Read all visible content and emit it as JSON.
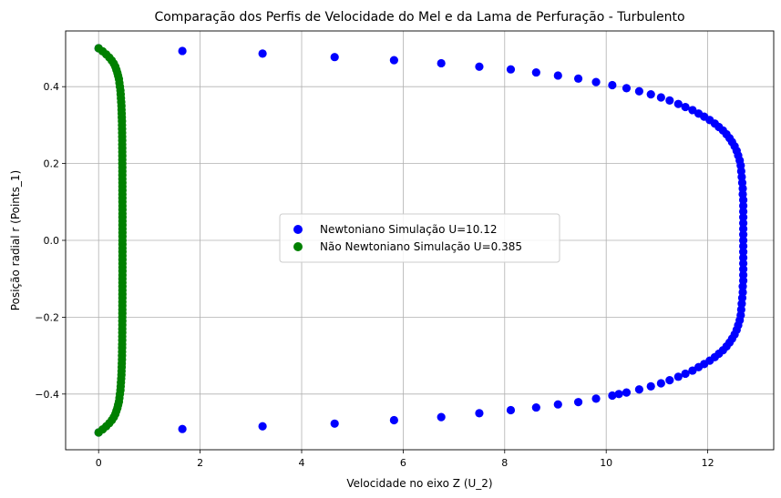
{
  "chart_data": {
    "type": "scatter",
    "title": "Comparação dos Perfis de Velocidade do Mel e da Lama de Perfuração - Turbulento",
    "xlabel": "Velocidade no eixo Z (U_2)",
    "ylabel": "Posição radial r (Points_1)",
    "xlim": [
      -0.65,
      13.3
    ],
    "ylim": [
      -0.545,
      0.545
    ],
    "xticks": [
      0,
      2,
      4,
      6,
      8,
      10,
      12
    ],
    "yticks": [
      -0.4,
      -0.2,
      0.0,
      0.2,
      0.4
    ],
    "xtick_labels": [
      "0",
      "2",
      "4",
      "6",
      "8",
      "10",
      "12"
    ],
    "ytick_labels": [
      "−0.4",
      "−0.2",
      "0.0",
      "0.2",
      "0.4"
    ],
    "grid": true,
    "legend_position": "center",
    "series": [
      {
        "name": "Newtoniano Simulação U=10.12",
        "color": "#0000ff",
        "points": [
          [
            0.0,
            0.5
          ],
          [
            1.65,
            0.493
          ],
          [
            3.23,
            0.486
          ],
          [
            4.65,
            0.477
          ],
          [
            5.82,
            0.469
          ],
          [
            6.75,
            0.461
          ],
          [
            7.5,
            0.452
          ],
          [
            8.12,
            0.445
          ],
          [
            8.62,
            0.437
          ],
          [
            9.05,
            0.429
          ],
          [
            9.45,
            0.421
          ],
          [
            9.8,
            0.412
          ],
          [
            10.12,
            0.404
          ],
          [
            10.4,
            0.396
          ],
          [
            10.65,
            0.388
          ],
          [
            10.88,
            0.38
          ],
          [
            11.08,
            0.372
          ],
          [
            11.25,
            0.364
          ],
          [
            11.42,
            0.355
          ],
          [
            11.56,
            0.347
          ],
          [
            11.7,
            0.339
          ],
          [
            11.82,
            0.33
          ],
          [
            11.93,
            0.322
          ],
          [
            12.04,
            0.313
          ],
          [
            12.14,
            0.304
          ],
          [
            12.22,
            0.295
          ],
          [
            12.3,
            0.286
          ],
          [
            12.37,
            0.276
          ],
          [
            12.43,
            0.266
          ],
          [
            12.48,
            0.256
          ],
          [
            12.53,
            0.245
          ],
          [
            12.57,
            0.233
          ],
          [
            12.6,
            0.221
          ],
          [
            12.63,
            0.208
          ],
          [
            12.65,
            0.195
          ],
          [
            12.66,
            0.18
          ],
          [
            12.67,
            0.165
          ],
          [
            12.68,
            0.15
          ],
          [
            12.69,
            0.135
          ],
          [
            12.69,
            0.12
          ],
          [
            12.7,
            0.105
          ],
          [
            12.7,
            0.09
          ],
          [
            12.7,
            0.075
          ],
          [
            12.7,
            0.06
          ],
          [
            12.7,
            0.045
          ],
          [
            12.7,
            0.03
          ],
          [
            12.7,
            0.015
          ],
          [
            12.7,
            0.0
          ],
          [
            12.7,
            -0.015
          ],
          [
            12.7,
            -0.03
          ],
          [
            12.7,
            -0.045
          ],
          [
            12.7,
            -0.06
          ],
          [
            12.7,
            -0.075
          ],
          [
            12.7,
            -0.09
          ],
          [
            12.7,
            -0.105
          ],
          [
            12.69,
            -0.12
          ],
          [
            12.69,
            -0.135
          ],
          [
            12.68,
            -0.15
          ],
          [
            12.67,
            -0.165
          ],
          [
            12.66,
            -0.18
          ],
          [
            12.65,
            -0.195
          ],
          [
            12.63,
            -0.208
          ],
          [
            12.6,
            -0.221
          ],
          [
            12.57,
            -0.233
          ],
          [
            12.53,
            -0.245
          ],
          [
            12.48,
            -0.256
          ],
          [
            12.43,
            -0.266
          ],
          [
            12.37,
            -0.276
          ],
          [
            12.3,
            -0.286
          ],
          [
            12.22,
            -0.295
          ],
          [
            12.14,
            -0.304
          ],
          [
            12.04,
            -0.313
          ],
          [
            11.93,
            -0.322
          ],
          [
            11.82,
            -0.33
          ],
          [
            11.7,
            -0.339
          ],
          [
            11.56,
            -0.347
          ],
          [
            11.42,
            -0.355
          ],
          [
            11.25,
            -0.364
          ],
          [
            11.08,
            -0.372
          ],
          [
            10.88,
            -0.38
          ],
          [
            10.65,
            -0.388
          ],
          [
            10.4,
            -0.396
          ],
          [
            10.25,
            -0.4
          ],
          [
            10.12,
            -0.404
          ],
          [
            9.8,
            -0.412
          ],
          [
            9.45,
            -0.421
          ],
          [
            9.05,
            -0.427
          ],
          [
            8.62,
            -0.435
          ],
          [
            8.12,
            -0.442
          ],
          [
            7.5,
            -0.45
          ],
          [
            6.75,
            -0.46
          ],
          [
            5.82,
            -0.468
          ],
          [
            4.65,
            -0.477
          ],
          [
            3.23,
            -0.484
          ],
          [
            1.65,
            -0.491
          ],
          [
            0.0,
            -0.5
          ]
        ]
      },
      {
        "name": "Não Newtoniano Simulação U=0.385",
        "color": "#008000",
        "points": [
          [
            0.0,
            0.5
          ],
          [
            0.08,
            0.492
          ],
          [
            0.15,
            0.484
          ],
          [
            0.21,
            0.476
          ],
          [
            0.26,
            0.468
          ],
          [
            0.3,
            0.46
          ],
          [
            0.33,
            0.452
          ],
          [
            0.35,
            0.444
          ],
          [
            0.37,
            0.436
          ],
          [
            0.385,
            0.428
          ],
          [
            0.4,
            0.42
          ],
          [
            0.41,
            0.41
          ],
          [
            0.42,
            0.4
          ],
          [
            0.43,
            0.39
          ],
          [
            0.435,
            0.38
          ],
          [
            0.44,
            0.37
          ],
          [
            0.445,
            0.36
          ],
          [
            0.45,
            0.35
          ],
          [
            0.452,
            0.34
          ],
          [
            0.455,
            0.33
          ],
          [
            0.457,
            0.32
          ],
          [
            0.46,
            0.31
          ],
          [
            0.461,
            0.3
          ],
          [
            0.462,
            0.29
          ],
          [
            0.463,
            0.28
          ],
          [
            0.464,
            0.27
          ],
          [
            0.465,
            0.26
          ],
          [
            0.465,
            0.25
          ],
          [
            0.466,
            0.24
          ],
          [
            0.466,
            0.23
          ],
          [
            0.467,
            0.22
          ],
          [
            0.467,
            0.21
          ],
          [
            0.467,
            0.2
          ],
          [
            0.468,
            0.19
          ],
          [
            0.468,
            0.18
          ],
          [
            0.468,
            0.17
          ],
          [
            0.468,
            0.16
          ],
          [
            0.469,
            0.15
          ],
          [
            0.469,
            0.14
          ],
          [
            0.469,
            0.13
          ],
          [
            0.469,
            0.12
          ],
          [
            0.469,
            0.11
          ],
          [
            0.469,
            0.1
          ],
          [
            0.47,
            0.09
          ],
          [
            0.47,
            0.08
          ],
          [
            0.47,
            0.07
          ],
          [
            0.47,
            0.06
          ],
          [
            0.47,
            0.05
          ],
          [
            0.47,
            0.04
          ],
          [
            0.47,
            0.03
          ],
          [
            0.47,
            0.02
          ],
          [
            0.47,
            0.01
          ],
          [
            0.47,
            0.0
          ],
          [
            0.47,
            -0.01
          ],
          [
            0.47,
            -0.02
          ],
          [
            0.47,
            -0.03
          ],
          [
            0.47,
            -0.04
          ],
          [
            0.47,
            -0.05
          ],
          [
            0.47,
            -0.06
          ],
          [
            0.47,
            -0.07
          ],
          [
            0.47,
            -0.08
          ],
          [
            0.47,
            -0.09
          ],
          [
            0.469,
            -0.1
          ],
          [
            0.469,
            -0.11
          ],
          [
            0.469,
            -0.12
          ],
          [
            0.469,
            -0.13
          ],
          [
            0.469,
            -0.14
          ],
          [
            0.469,
            -0.15
          ],
          [
            0.468,
            -0.16
          ],
          [
            0.468,
            -0.17
          ],
          [
            0.468,
            -0.18
          ],
          [
            0.468,
            -0.19
          ],
          [
            0.467,
            -0.2
          ],
          [
            0.467,
            -0.21
          ],
          [
            0.467,
            -0.22
          ],
          [
            0.466,
            -0.23
          ],
          [
            0.466,
            -0.24
          ],
          [
            0.465,
            -0.25
          ],
          [
            0.465,
            -0.26
          ],
          [
            0.464,
            -0.27
          ],
          [
            0.463,
            -0.28
          ],
          [
            0.462,
            -0.29
          ],
          [
            0.461,
            -0.3
          ],
          [
            0.46,
            -0.31
          ],
          [
            0.457,
            -0.32
          ],
          [
            0.455,
            -0.33
          ],
          [
            0.452,
            -0.34
          ],
          [
            0.45,
            -0.35
          ],
          [
            0.445,
            -0.36
          ],
          [
            0.44,
            -0.37
          ],
          [
            0.435,
            -0.38
          ],
          [
            0.43,
            -0.39
          ],
          [
            0.42,
            -0.4
          ],
          [
            0.41,
            -0.41
          ],
          [
            0.4,
            -0.42
          ],
          [
            0.385,
            -0.428
          ],
          [
            0.37,
            -0.436
          ],
          [
            0.35,
            -0.444
          ],
          [
            0.33,
            -0.452
          ],
          [
            0.3,
            -0.46
          ],
          [
            0.26,
            -0.468
          ],
          [
            0.21,
            -0.476
          ],
          [
            0.15,
            -0.484
          ],
          [
            0.08,
            -0.492
          ],
          [
            0.0,
            -0.5
          ]
        ]
      }
    ]
  }
}
